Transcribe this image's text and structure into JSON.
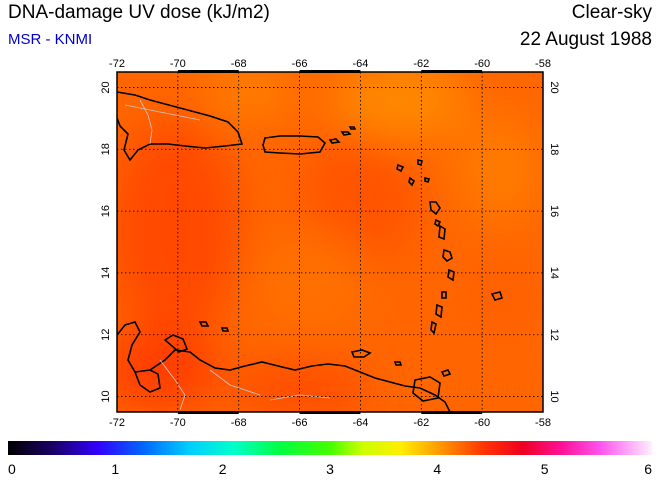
{
  "header": {
    "title": "DNA-damage UV dose (kJ/m2)",
    "subtitle": "MSR - KNMI",
    "sky_condition": "Clear-sky",
    "date": "22 August 1988"
  },
  "map": {
    "lon_range": [
      -72,
      -58
    ],
    "lat_range": [
      9.5,
      20.5
    ],
    "lon_ticks": [
      "-72",
      "-70",
      "-68",
      "-66",
      "-64",
      "-62",
      "-60",
      "-58"
    ],
    "lat_ticks": [
      "10",
      "12",
      "14",
      "16",
      "18",
      "20"
    ],
    "grid": "dotted"
  },
  "colorbar": {
    "min": 0,
    "max": 6,
    "labels": [
      "0",
      "1",
      "2",
      "3",
      "4",
      "5",
      "6"
    ]
  },
  "colors": {
    "title_accent": "#0000cc",
    "dominant_field": "#ff5a00"
  }
}
